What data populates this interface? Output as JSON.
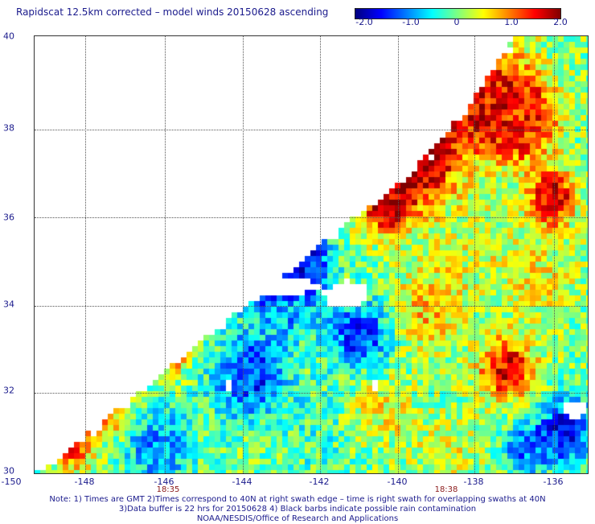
{
  "title": "Rapidscat 12.5km corrected – model winds 20150628 ascending",
  "colorbar": {
    "labels": [
      "-2.0",
      "-1.0",
      "0",
      "1.0",
      "2.0"
    ],
    "stops": [
      "#00007f",
      "#0000ff",
      "#007fff",
      "#00ffff",
      "#7fff7f",
      "#ffff00",
      "#ff7f00",
      "#ff0000",
      "#7f0000"
    ]
  },
  "axes": {
    "lon_labels": [
      "-150",
      "-148",
      "-146",
      "-144",
      "-142",
      "-140",
      "-138",
      "-136"
    ],
    "lat_labels": [
      "40",
      "38",
      "36",
      "34",
      "32",
      "30"
    ],
    "time_labels": [
      "18:35",
      "18:38"
    ]
  },
  "notes": [
    "Note: 1) Times are GMT 2)Times correspond to 40N at right swath edge – time is right swath for overlapping swaths at 40N",
    "3)Data buffer is 22 hrs for 20150628 4) Black barbs indicate possible rain contamination",
    "NOAA/NESDIS/Office of Research and Applications"
  ],
  "chart_data": {
    "type": "heatmap",
    "title": "Rapidscat 12.5km corrected – model winds 20150628 ascending",
    "xlabel": "",
    "ylabel": "",
    "xlim": [
      -150,
      -135.2
    ],
    "ylim": [
      30,
      40
    ],
    "x_ticks": [
      -150,
      -148,
      -146,
      -144,
      -142,
      -140,
      -138,
      -136
    ],
    "y_ticks": [
      30,
      32,
      34,
      36,
      38,
      40
    ],
    "color_range": [
      -2.0,
      2.0
    ],
    "grid": true,
    "swath_edge": [
      [
        -149.9,
        30
      ],
      [
        -139.5,
        37.2
      ],
      [
        -137.5,
        39.5
      ],
      [
        -137.2,
        40
      ]
    ],
    "regions": [
      {
        "lon": -139.8,
        "lat": 37.4,
        "value": 2.4,
        "radius": 1.1
      },
      {
        "lon": -137.7,
        "lat": 38.5,
        "value": 1.8,
        "radius": 1.2
      },
      {
        "lon": -140.6,
        "lat": 36.2,
        "value": 1.9,
        "radius": 0.7
      },
      {
        "lon": -136.2,
        "lat": 36.3,
        "value": 2.0,
        "radius": 0.6
      },
      {
        "lon": -136.9,
        "lat": 38.0,
        "value": 1.3,
        "radius": 0.8
      },
      {
        "lon": -139.5,
        "lat": 33.8,
        "value": 0.8,
        "radius": 0.9
      },
      {
        "lon": -137.4,
        "lat": 32.4,
        "value": 1.8,
        "radius": 0.7
      },
      {
        "lon": -136.6,
        "lat": 34.5,
        "value": 0.5,
        "radius": 1.0
      },
      {
        "lon": -146.4,
        "lat": 32.8,
        "value": 2.2,
        "radius": 0.4
      },
      {
        "lon": -145.8,
        "lat": 33.8,
        "value": 1.9,
        "radius": 0.4
      },
      {
        "lon": -149.0,
        "lat": 30.7,
        "value": 1.8,
        "radius": 0.5
      },
      {
        "lon": -148.2,
        "lat": 31.4,
        "value": 1.4,
        "radius": 0.5
      },
      {
        "lon": -144.0,
        "lat": 34.6,
        "value": -1.9,
        "radius": 0.8
      },
      {
        "lon": -142.8,
        "lat": 34.9,
        "value": -1.7,
        "radius": 0.7
      },
      {
        "lon": -141.3,
        "lat": 33.2,
        "value": -1.4,
        "radius": 0.8
      },
      {
        "lon": -144.2,
        "lat": 32.3,
        "value": -1.5,
        "radius": 0.9
      },
      {
        "lon": -146.7,
        "lat": 30.6,
        "value": -1.1,
        "radius": 0.8
      },
      {
        "lon": -135.8,
        "lat": 31.0,
        "value": -1.7,
        "radius": 0.7
      },
      {
        "lon": -136.9,
        "lat": 30.6,
        "value": -1.2,
        "radius": 0.6
      },
      {
        "lon": -142.5,
        "lat": 31.0,
        "value": -0.3,
        "radius": 1.1
      },
      {
        "lon": -140.8,
        "lat": 31.5,
        "value": 0.6,
        "radius": 0.8
      },
      {
        "lon": -139.0,
        "lat": 30.5,
        "value": 0.4,
        "radius": 0.9
      },
      {
        "lon": -138.3,
        "lat": 35.2,
        "value": 0.4,
        "radius": 1.0
      },
      {
        "lon": -143.0,
        "lat": 33.8,
        "value": -0.8,
        "radius": 0.7
      },
      {
        "lon": -145.3,
        "lat": 31.3,
        "value": -0.2,
        "radius": 0.8
      }
    ],
    "missing_areas": [
      {
        "lon": -143.5,
        "lat": 34.3,
        "rx": 1.1,
        "ry": 0.22
      },
      {
        "lon": -141.7,
        "lat": 34.1,
        "rx": 0.6,
        "ry": 0.3
      },
      {
        "lon": -135.6,
        "lat": 31.5,
        "rx": 0.35,
        "ry": 0.2
      },
      {
        "lon": -140.9,
        "lat": 32.0,
        "rx": 0.1,
        "ry": 0.12
      },
      {
        "lon": -144.8,
        "lat": 32.0,
        "rx": 0.08,
        "ry": 0.1
      }
    ]
  }
}
